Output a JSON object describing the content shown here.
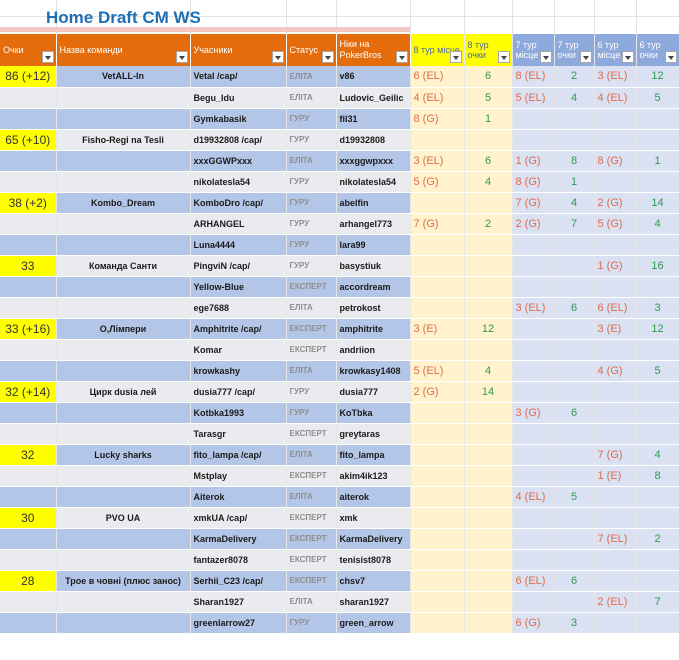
{
  "title": "Home Draft CM WS",
  "headers": {
    "points": "Очки",
    "team": "Назва команди",
    "members": "Учасники",
    "status": "Статус",
    "nicks": "Ніки на PokerBros",
    "t8_place": "8 тур місце",
    "t8_points": "8 тур очки",
    "t7_place": "7 тур місце",
    "t7_points": "7 тур очки",
    "t6_place": "6 тур місце",
    "t6_points": "6 тур очки"
  },
  "rows": [
    {
      "points": "86 (+12)",
      "team": "VetALL-In",
      "member": "Vetal /cap/",
      "status": "ЕЛІТА",
      "nick": "v86",
      "p8": "6 (EL)",
      "o8": "6",
      "p7": "8 (EL)",
      "o7": "2",
      "p6": "3 (EL)",
      "o6": "12"
    },
    {
      "points": "",
      "team": "",
      "member": "Begu_Idu",
      "status": "ЕЛІТА",
      "nick": "Ludovic_Geilic",
      "p8": "4 (EL)",
      "o8": "5",
      "p7": "5 (EL)",
      "o7": "4",
      "p6": "4 (EL)",
      "o6": "5"
    },
    {
      "points": "",
      "team": "",
      "member": "Gymkabasik",
      "status": "ГУРУ",
      "nick": "fil31",
      "p8": "8 (G)",
      "o8": "1",
      "p7": "",
      "o7": "",
      "p6": "",
      "o6": ""
    },
    {
      "points": "65 (+10)",
      "team": "Fisho-Regi na Tesli",
      "member": "d19932808 /cap/",
      "status": "ГУРУ",
      "nick": "d19932808",
      "p8": "",
      "o8": "",
      "p7": "",
      "o7": "",
      "p6": "",
      "o6": ""
    },
    {
      "points": "",
      "team": "",
      "member": "xxxGGWPxxx",
      "status": "ЕЛІТА",
      "nick": "xxxggwpxxx",
      "p8": "3 (EL)",
      "o8": "6",
      "p7": "1 (G)",
      "o7": "8",
      "p6": "8 (G)",
      "o6": "1"
    },
    {
      "points": "",
      "team": "",
      "member": "nikolatesla54",
      "status": "ГУРУ",
      "nick": "nikolatesla54",
      "p8": "5 (G)",
      "o8": "4",
      "p7": "8 (G)",
      "o7": "1",
      "p6": "",
      "o6": ""
    },
    {
      "points": "38 (+2)",
      "team": "Kombo_Dream",
      "member": "KomboDro /cap/",
      "status": "ГУРУ",
      "nick": "abelfin",
      "p8": "",
      "o8": "",
      "p7": "7 (G)",
      "o7": "4",
      "p6": "2 (G)",
      "o6": "14"
    },
    {
      "points": "",
      "team": "",
      "member": "ARHANGEL",
      "status": "ГУРУ",
      "nick": "arhangel773",
      "p8": "7 (G)",
      "o8": "2",
      "p7": "2 (G)",
      "o7": "7",
      "p6": "5 (G)",
      "o6": "4"
    },
    {
      "points": "",
      "team": "",
      "member": "Luna4444",
      "status": "ГУРУ",
      "nick": "lara99",
      "p8": "",
      "o8": "",
      "p7": "",
      "o7": "",
      "p6": "",
      "o6": ""
    },
    {
      "points": "33",
      "team": "Команда Санти",
      "member": "PingviN /cap/",
      "status": "ГУРУ",
      "nick": "basystiuk",
      "p8": "",
      "o8": "",
      "p7": "",
      "o7": "",
      "p6": "1 (G)",
      "o6": "16"
    },
    {
      "points": "",
      "team": "",
      "member": "Yellow-Blue",
      "status": "ЕКСПЕРТ",
      "nick": "accordream",
      "p8": "",
      "o8": "",
      "p7": "",
      "o7": "",
      "p6": "",
      "o6": ""
    },
    {
      "points": "",
      "team": "",
      "member": "ege7688",
      "status": "ЕЛІТА",
      "nick": "petrokost",
      "p8": "",
      "o8": "",
      "p7": "3 (EL)",
      "o7": "6",
      "p6": "6 (EL)",
      "o6": "3"
    },
    {
      "points": "33 (+16)",
      "team": "О,Лімпери",
      "member": "Amphitrite /cap/",
      "status": "ЕКСПЕРТ",
      "nick": "amphitrite",
      "p8": "3 (E)",
      "o8": "12",
      "p7": "",
      "o7": "",
      "p6": "3 (E)",
      "o6": "12"
    },
    {
      "points": "",
      "team": "",
      "member": "Komar",
      "status": "ЕКСПЕРТ",
      "nick": "andriion",
      "p8": "",
      "o8": "",
      "p7": "",
      "o7": "",
      "p6": "",
      "o6": ""
    },
    {
      "points": "",
      "team": "",
      "member": "krowkashy",
      "status": "ЕЛІТА",
      "nick": "krowkasy1408",
      "p8": "5 (EL)",
      "o8": "4",
      "p7": "",
      "o7": "",
      "p6": "4 (G)",
      "o6": "5"
    },
    {
      "points": "32 (+14)",
      "team": "Цирк dusia лей",
      "member": "dusia777 /cap/",
      "status": "ГУРУ",
      "nick": "dusia777",
      "p8": "2 (G)",
      "o8": "14",
      "p7": "",
      "o7": "",
      "p6": "",
      "o6": ""
    },
    {
      "points": "",
      "team": "",
      "member": "Kotbka1993",
      "status": "ГУРУ",
      "nick": "KoTbka",
      "p8": "",
      "o8": "",
      "p7": "3 (G)",
      "o7": "6",
      "p6": "",
      "o6": ""
    },
    {
      "points": "",
      "team": "",
      "member": "Tarasgr",
      "status": "ЕКСПЕРТ",
      "nick": "greytaras",
      "p8": "",
      "o8": "",
      "p7": "",
      "o7": "",
      "p6": "",
      "o6": ""
    },
    {
      "points": "32",
      "team": "Lucky sharks",
      "member": "fito_lampa /cap/",
      "status": "ЕЛІТА",
      "nick": "fito_lampa",
      "p8": "",
      "o8": "",
      "p7": "",
      "o7": "",
      "p6": "7 (G)",
      "o6": "4"
    },
    {
      "points": "",
      "team": "",
      "member": "Mstplay",
      "status": "ЕКСПЕРТ",
      "nick": "akim4ik123",
      "p8": "",
      "o8": "",
      "p7": "",
      "o7": "",
      "p6": "1 (E)",
      "o6": "8"
    },
    {
      "points": "",
      "team": "",
      "member": "Aiterok",
      "status": "ЕЛІТА",
      "nick": "aiterok",
      "p8": "",
      "o8": "",
      "p7": "4 (EL)",
      "o7": "5",
      "p6": "",
      "o6": ""
    },
    {
      "points": "30",
      "team": "PVO UA",
      "member": "xmkUA /cap/",
      "status": "ЕКСПЕРТ",
      "nick": "xmk",
      "p8": "",
      "o8": "",
      "p7": "",
      "o7": "",
      "p6": "",
      "o6": ""
    },
    {
      "points": "",
      "team": "",
      "member": "KarmaDelivery",
      "status": "ЕКСПЕРТ",
      "nick": "KarmaDelivery",
      "p8": "",
      "o8": "",
      "p7": "",
      "o7": "",
      "p6": "7 (EL)",
      "o6": "2"
    },
    {
      "points": "",
      "team": "",
      "member": "fantazer8078",
      "status": "ЕКСПЕРТ",
      "nick": "tenisist8078",
      "p8": "",
      "o8": "",
      "p7": "",
      "o7": "",
      "p6": "",
      "o6": ""
    },
    {
      "points": "28",
      "team": "Трое в човні (плюс занос)",
      "member": "Serhii_C23 /cap/",
      "status": "ЕКСПЕРТ",
      "nick": "chsv7",
      "p8": "",
      "o8": "",
      "p7": "6 (EL)",
      "o7": "6",
      "p6": "",
      "o6": ""
    },
    {
      "points": "",
      "team": "",
      "member": "Sharan1927",
      "status": "ЕЛІТА",
      "nick": "sharan1927",
      "p8": "",
      "o8": "",
      "p7": "",
      "o7": "",
      "p6": "2 (EL)",
      "o6": "7"
    },
    {
      "points": "",
      "team": "",
      "member": "greenlarrow27",
      "status": "ГУРУ",
      "nick": "green_arrow",
      "p8": "",
      "o8": "",
      "p7": "6 (G)",
      "o7": "3",
      "p6": "",
      "o6": ""
    }
  ],
  "colors": {
    "header_orange": "#e46c0a",
    "highlight_yellow": "#ffff00",
    "header_blue": "#8ea9db",
    "row_blue": "#b4c6e7",
    "row_gray": "#e9ebef",
    "place_color": "#e26b4a",
    "points_color": "#2e9a4e",
    "title_blue": "#1f6fb5"
  }
}
